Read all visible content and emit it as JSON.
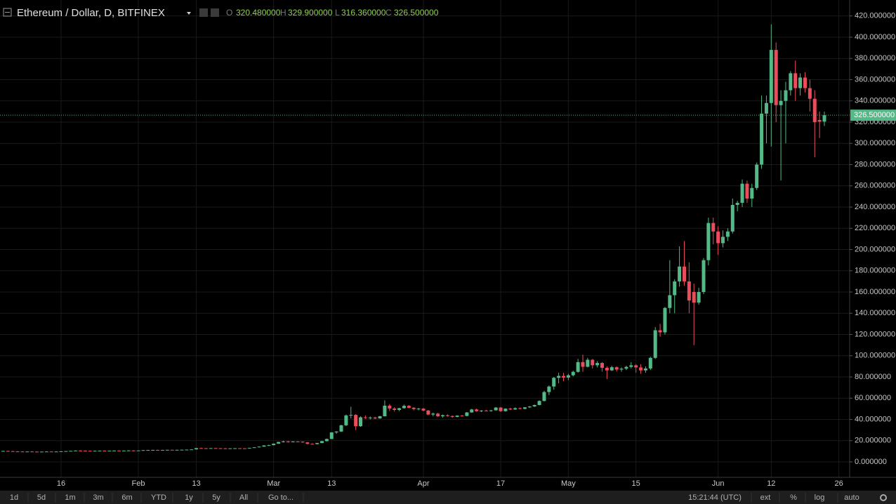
{
  "header": {
    "title": "Ethereum / Dollar, D, BITFINEX",
    "ohlc_legend": [
      {
        "key": "O",
        "value": "320.480000"
      },
      {
        "key": "H",
        "value": "329.900000"
      },
      {
        "key": "L",
        "value": "316.360000"
      },
      {
        "key": "C",
        "value": "326.500000"
      }
    ]
  },
  "toolbar": {
    "buttons": [
      "1d",
      "5d",
      "1m",
      "3m",
      "6m",
      "YTD",
      "1y",
      "5y",
      "All",
      "Go to..."
    ],
    "time": "15:21:44 (UTC)",
    "options": [
      "ext",
      "%",
      "log",
      "auto"
    ]
  },
  "chart_data": {
    "type": "candlestick",
    "up_color": "#53b987",
    "down_color": "#eb4d5c",
    "grid": true,
    "last_price": {
      "value": 326.5,
      "label": "326.500000"
    },
    "ylim": [
      -14.5,
      435
    ],
    "yticks": [
      {
        "value": 0,
        "label": "0.000000"
      },
      {
        "value": 20,
        "label": "20.000000"
      },
      {
        "value": 40,
        "label": "40.000000"
      },
      {
        "value": 60,
        "label": "60.000000"
      },
      {
        "value": 80,
        "label": "80.000000"
      },
      {
        "value": 100,
        "label": "100.000000"
      },
      {
        "value": 120,
        "label": "120.000000"
      },
      {
        "value": 140,
        "label": "140.000000"
      },
      {
        "value": 160,
        "label": "160.000000"
      },
      {
        "value": 180,
        "label": "180.000000"
      },
      {
        "value": 200,
        "label": "200.000000"
      },
      {
        "value": 220,
        "label": "220.000000"
      },
      {
        "value": 240,
        "label": "240.000000"
      },
      {
        "value": 260,
        "label": "260.000000"
      },
      {
        "value": 280,
        "label": "280.000000"
      },
      {
        "value": 300,
        "label": "300.000000"
      },
      {
        "value": 320,
        "label": "320.000000"
      },
      {
        "value": 340,
        "label": "340.000000"
      },
      {
        "value": 360,
        "label": "360.000000"
      },
      {
        "value": 380,
        "label": "380.000000"
      },
      {
        "value": 400,
        "label": "400.000000"
      },
      {
        "value": 420,
        "label": "420.000000"
      }
    ],
    "categories": [
      null,
      null,
      null,
      null,
      null,
      null,
      null,
      null,
      null,
      null,
      null,
      null,
      "16",
      null,
      null,
      null,
      null,
      null,
      null,
      null,
      null,
      null,
      null,
      null,
      null,
      null,
      null,
      null,
      "Feb",
      null,
      null,
      null,
      null,
      null,
      null,
      null,
      null,
      null,
      null,
      null,
      "13",
      null,
      null,
      null,
      null,
      null,
      null,
      null,
      null,
      null,
      null,
      null,
      null,
      null,
      null,
      null,
      "Mar",
      null,
      null,
      null,
      null,
      null,
      null,
      null,
      null,
      null,
      null,
      null,
      "13",
      null,
      null,
      null,
      null,
      null,
      null,
      null,
      null,
      null,
      null,
      null,
      null,
      null,
      null,
      null,
      null,
      null,
      null,
      "Apr",
      null,
      null,
      null,
      null,
      null,
      null,
      null,
      null,
      null,
      null,
      null,
      null,
      null,
      null,
      null,
      "17",
      null,
      null,
      null,
      null,
      null,
      null,
      null,
      null,
      null,
      null,
      null,
      null,
      null,
      "May",
      null,
      null,
      null,
      null,
      null,
      null,
      null,
      null,
      null,
      null,
      null,
      null,
      null,
      "15",
      null,
      null,
      null,
      null,
      null,
      null,
      null,
      null,
      null,
      null,
      null,
      null,
      null,
      null,
      null,
      null,
      "Jun",
      null,
      null,
      null,
      null,
      null,
      null,
      null,
      null,
      null,
      null,
      "12",
      null,
      null,
      null,
      null,
      null,
      null,
      null,
      null,
      null,
      null,
      null,
      null,
      null,
      "26"
    ],
    "ohlc": [
      [
        10.0,
        10.5,
        9.8,
        10.3
      ],
      [
        10.3,
        10.6,
        10.0,
        10.1
      ],
      [
        10.1,
        10.4,
        9.7,
        9.9
      ],
      [
        9.9,
        10.2,
        9.6,
        9.8
      ],
      [
        9.8,
        10.0,
        9.5,
        9.6
      ],
      [
        9.6,
        9.9,
        9.4,
        9.8
      ],
      [
        9.8,
        10.1,
        9.6,
        9.7
      ],
      [
        9.7,
        9.9,
        9.5,
        9.6
      ],
      [
        9.6,
        9.8,
        9.4,
        9.7
      ],
      [
        9.7,
        10.0,
        9.5,
        9.8
      ],
      [
        9.8,
        10.0,
        9.6,
        9.7
      ],
      [
        9.7,
        9.9,
        9.5,
        9.8
      ],
      [
        9.8,
        10.1,
        9.6,
        10.0
      ],
      [
        10.0,
        10.3,
        9.8,
        10.2
      ],
      [
        10.2,
        10.5,
        10.0,
        10.4
      ],
      [
        10.4,
        10.9,
        10.2,
        10.7
      ],
      [
        10.7,
        11.0,
        10.4,
        10.6
      ],
      [
        10.6,
        10.8,
        10.3,
        10.5
      ],
      [
        10.5,
        10.7,
        10.2,
        10.4
      ],
      [
        10.4,
        10.6,
        10.2,
        10.5
      ],
      [
        10.5,
        10.8,
        10.3,
        10.6
      ],
      [
        10.6,
        10.8,
        10.4,
        10.5
      ],
      [
        10.5,
        10.7,
        10.3,
        10.6
      ],
      [
        10.6,
        10.9,
        10.4,
        10.7
      ],
      [
        10.7,
        10.9,
        10.5,
        10.6
      ],
      [
        10.6,
        10.8,
        10.4,
        10.7
      ],
      [
        10.7,
        11.0,
        10.5,
        10.8
      ],
      [
        10.8,
        11.0,
        10.6,
        10.7
      ],
      [
        10.7,
        10.9,
        10.5,
        10.8
      ],
      [
        10.8,
        11.2,
        10.7,
        11.1
      ],
      [
        11.1,
        11.4,
        10.9,
        11.2
      ],
      [
        11.2,
        11.5,
        11.0,
        11.3
      ],
      [
        11.3,
        11.5,
        11.1,
        11.2
      ],
      [
        11.2,
        11.4,
        11.0,
        11.3
      ],
      [
        11.3,
        11.5,
        11.1,
        11.4
      ],
      [
        11.4,
        11.6,
        11.2,
        11.3
      ],
      [
        11.3,
        11.5,
        11.1,
        11.4
      ],
      [
        11.4,
        11.6,
        11.2,
        11.5
      ],
      [
        11.5,
        11.7,
        11.3,
        11.6
      ],
      [
        11.6,
        11.9,
        11.4,
        11.8
      ],
      [
        11.8,
        13.2,
        11.7,
        13.0
      ],
      [
        13.0,
        13.4,
        12.7,
        12.9
      ],
      [
        12.9,
        13.1,
        12.6,
        12.8
      ],
      [
        12.8,
        13.1,
        12.6,
        13.0
      ],
      [
        13.0,
        13.2,
        12.7,
        12.9
      ],
      [
        12.9,
        13.1,
        12.6,
        12.8
      ],
      [
        12.8,
        13.0,
        12.5,
        12.7
      ],
      [
        12.7,
        12.9,
        12.5,
        12.8
      ],
      [
        12.8,
        13.0,
        12.6,
        12.9
      ],
      [
        12.9,
        13.1,
        12.7,
        12.8
      ],
      [
        12.8,
        13.0,
        12.5,
        12.7
      ],
      [
        12.7,
        13.3,
        12.6,
        13.2
      ],
      [
        13.2,
        14.0,
        13.1,
        13.8
      ],
      [
        13.8,
        14.6,
        13.6,
        14.4
      ],
      [
        14.4,
        15.8,
        14.2,
        15.5
      ],
      [
        15.5,
        16.2,
        14.9,
        15.8
      ],
      [
        15.8,
        17.4,
        15.6,
        17.2
      ],
      [
        17.2,
        19.0,
        17.0,
        18.8
      ],
      [
        18.8,
        20.0,
        18.3,
        19.3
      ],
      [
        19.3,
        19.8,
        18.2,
        18.6
      ],
      [
        18.6,
        19.6,
        18.4,
        19.2
      ],
      [
        19.2,
        19.5,
        18.6,
        19.1
      ],
      [
        19.1,
        19.4,
        18.0,
        18.4
      ],
      [
        18.4,
        18.8,
        16.6,
        17.0
      ],
      [
        17.0,
        17.6,
        16.4,
        16.8
      ],
      [
        16.8,
        18.0,
        16.5,
        17.8
      ],
      [
        17.8,
        19.8,
        17.6,
        19.6
      ],
      [
        19.6,
        22.0,
        19.3,
        21.6
      ],
      [
        21.6,
        28.0,
        21.4,
        27.8
      ],
      [
        27.8,
        29.0,
        26.5,
        28.6
      ],
      [
        28.6,
        35.0,
        28.2,
        34.5
      ],
      [
        34.5,
        44.5,
        33.8,
        43.8
      ],
      [
        43.8,
        52.0,
        41.0,
        44.3
      ],
      [
        44.3,
        45.0,
        30.0,
        33.6
      ],
      [
        33.6,
        43.0,
        33.0,
        42.0
      ],
      [
        42.0,
        43.8,
        40.5,
        41.4
      ],
      [
        41.4,
        42.8,
        40.0,
        41.8
      ],
      [
        41.8,
        42.6,
        40.2,
        41.0
      ],
      [
        41.0,
        43.5,
        40.6,
        43.0
      ],
      [
        43.0,
        58.0,
        42.8,
        53.0
      ],
      [
        53.0,
        54.5,
        48.0,
        50.3
      ],
      [
        50.3,
        51.5,
        47.5,
        49.0
      ],
      [
        49.0,
        51.0,
        47.8,
        50.6
      ],
      [
        50.6,
        54.0,
        50.2,
        52.8
      ],
      [
        52.8,
        53.5,
        50.5,
        51.0
      ],
      [
        51.0,
        51.6,
        48.5,
        49.8
      ],
      [
        49.8,
        50.8,
        48.6,
        50.2
      ],
      [
        50.2,
        50.8,
        47.6,
        48.4
      ],
      [
        48.4,
        49.0,
        44.0,
        44.6
      ],
      [
        44.6,
        46.5,
        43.0,
        45.5
      ],
      [
        45.5,
        46.2,
        42.4,
        43.0
      ],
      [
        43.0,
        44.6,
        41.8,
        44.0
      ],
      [
        44.0,
        44.8,
        42.6,
        43.2
      ],
      [
        43.2,
        43.8,
        41.6,
        42.4
      ],
      [
        42.4,
        44.0,
        42.0,
        43.6
      ],
      [
        43.6,
        44.2,
        42.8,
        43.3
      ],
      [
        43.3,
        47.0,
        43.0,
        46.6
      ],
      [
        46.6,
        50.0,
        46.2,
        49.4
      ],
      [
        49.4,
        50.2,
        47.2,
        47.8
      ],
      [
        47.8,
        48.8,
        47.0,
        48.4
      ],
      [
        48.4,
        49.2,
        47.6,
        48.0
      ],
      [
        48.0,
        49.0,
        47.2,
        48.6
      ],
      [
        48.6,
        51.6,
        48.4,
        51.2
      ],
      [
        51.2,
        51.8,
        47.0,
        47.8
      ],
      [
        47.8,
        50.5,
        47.4,
        50.2
      ],
      [
        50.2,
        51.0,
        48.8,
        49.4
      ],
      [
        49.4,
        51.4,
        49.0,
        50.6
      ],
      [
        50.6,
        51.2,
        49.6,
        50.0
      ],
      [
        50.0,
        51.6,
        49.6,
        51.4
      ],
      [
        51.4,
        52.6,
        50.8,
        52.2
      ],
      [
        52.2,
        54.0,
        51.8,
        53.6
      ],
      [
        53.6,
        58.0,
        53.2,
        57.4
      ],
      [
        57.4,
        67.0,
        57.0,
        65.8
      ],
      [
        65.8,
        72.0,
        63.0,
        71.0
      ],
      [
        71.0,
        80.0,
        68.0,
        79.2
      ],
      [
        79.2,
        84.0,
        74.0,
        81.0
      ],
      [
        81.0,
        84.0,
        76.0,
        79.4
      ],
      [
        79.4,
        83.0,
        77.0,
        81.6
      ],
      [
        81.6,
        86.0,
        80.5,
        84.8
      ],
      [
        84.8,
        97.0,
        84.0,
        94.0
      ],
      [
        94.0,
        101.0,
        85.0,
        89.6
      ],
      [
        89.6,
        98.0,
        89.0,
        96.2
      ],
      [
        96.2,
        97.0,
        88.0,
        91.0
      ],
      [
        91.0,
        95.0,
        89.0,
        93.2
      ],
      [
        93.2,
        94.0,
        85.0,
        88.6
      ],
      [
        88.6,
        90.0,
        78.0,
        86.2
      ],
      [
        86.2,
        90.5,
        85.6,
        89.2
      ],
      [
        89.2,
        90.0,
        85.2,
        87.0
      ],
      [
        87.0,
        89.0,
        85.0,
        87.8
      ],
      [
        87.8,
        90.6,
        86.5,
        89.5
      ],
      [
        89.5,
        94.0,
        88.0,
        91.0
      ],
      [
        91.0,
        92.0,
        84.0,
        89.0
      ],
      [
        89.0,
        92.0,
        83.0,
        86.2
      ],
      [
        86.2,
        90.0,
        84.0,
        88.0
      ],
      [
        88.0,
        99.0,
        86.5,
        98.0
      ],
      [
        98.0,
        127.0,
        97.0,
        124.0
      ],
      [
        124.0,
        130.0,
        118.0,
        122.0
      ],
      [
        122.0,
        146.0,
        120.0,
        145.0
      ],
      [
        145.0,
        190.0,
        140.0,
        157.0
      ],
      [
        157.0,
        172.0,
        140.0,
        170.0
      ],
      [
        170.0,
        203.0,
        165.0,
        184.0
      ],
      [
        184.0,
        208.0,
        166.0,
        170.0
      ],
      [
        170.0,
        188.0,
        140.0,
        152.0
      ],
      [
        160.0,
        168.0,
        110.0,
        150.0
      ],
      [
        150.0,
        164.0,
        148.0,
        160.0
      ],
      [
        160.0,
        192.0,
        158.0,
        190.0
      ],
      [
        190.0,
        230.0,
        185.0,
        225.0
      ],
      [
        225.0,
        230.0,
        205.0,
        217.0
      ],
      [
        217.0,
        222.0,
        195.0,
        206.0
      ],
      [
        206.0,
        218.0,
        202.0,
        212.0
      ],
      [
        212.0,
        220.0,
        208.0,
        217.0
      ],
      [
        217.0,
        248.0,
        215.0,
        242.0
      ],
      [
        242.0,
        246.0,
        236.0,
        244.0
      ],
      [
        244.0,
        266.0,
        240.0,
        262.0
      ],
      [
        262.0,
        265.0,
        244.0,
        248.0
      ],
      [
        248.0,
        262.0,
        240.0,
        258.0
      ],
      [
        258.0,
        282.0,
        256.0,
        280.0
      ],
      [
        280.0,
        345.0,
        276.0,
        328.0
      ],
      [
        328.0,
        345.0,
        300.0,
        338.0
      ],
      [
        338.0,
        412.0,
        297.0,
        388.0
      ],
      [
        388.0,
        395.0,
        320.0,
        336.0
      ],
      [
        336.0,
        350.0,
        265.0,
        340.0
      ],
      [
        340.0,
        358.0,
        300.0,
        350.0
      ],
      [
        350.0,
        368.0,
        345.0,
        366.0
      ],
      [
        366.0,
        378.0,
        340.0,
        352.0
      ],
      [
        352.0,
        366.0,
        345.0,
        362.0
      ],
      [
        362.0,
        367.0,
        348.0,
        352.0
      ],
      [
        352.0,
        360.0,
        330.0,
        342.0
      ],
      [
        342.0,
        350.0,
        287.0,
        320.0
      ],
      [
        322.0,
        330.0,
        305.0,
        320.48
      ],
      [
        320.48,
        329.9,
        316.36,
        326.5
      ],
      null,
      null,
      null
    ]
  }
}
